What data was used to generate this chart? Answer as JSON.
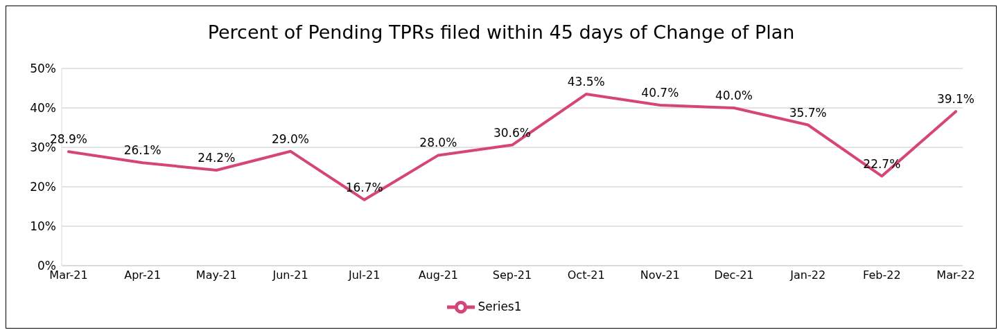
{
  "chart_data": {
    "type": "line",
    "title": "Percent of Pending TPRs filed within 45 days of Change of Plan",
    "categories": [
      "Mar-21",
      "Apr-21",
      "May-21",
      "Jun-21",
      "Jul-21",
      "Aug-21",
      "Sep-21",
      "Oct-21",
      "Nov-21",
      "Dec-21",
      "Jan-22",
      "Feb-22",
      "Mar-22"
    ],
    "series": [
      {
        "name": "Series1",
        "color": "#d6457a",
        "values": [
          28.9,
          26.1,
          24.2,
          29.0,
          16.7,
          28.0,
          30.6,
          43.5,
          40.7,
          40.0,
          35.7,
          22.7,
          39.1
        ],
        "value_labels": [
          "28.9%",
          "26.1%",
          "24.2%",
          "29.0%",
          "16.7%",
          "28.0%",
          "30.6%",
          "43.5%",
          "40.7%",
          "40.0%",
          "35.7%",
          "22.7%",
          "39.1%"
        ]
      }
    ],
    "ylim": [
      0,
      50
    ],
    "yticks": [
      {
        "value": 0,
        "label": "0%"
      },
      {
        "value": 10,
        "label": "10%"
      },
      {
        "value": 20,
        "label": "20%"
      },
      {
        "value": 30,
        "label": "30%"
      },
      {
        "value": 40,
        "label": "40%"
      },
      {
        "value": 50,
        "label": "50%"
      }
    ],
    "grid": "y",
    "legend": "bottom",
    "marker": "none",
    "line_style": "solid"
  }
}
